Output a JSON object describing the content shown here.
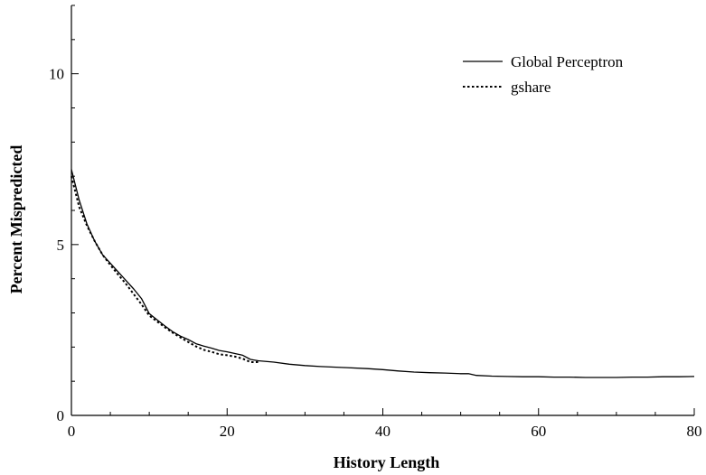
{
  "chart_data": {
    "type": "line",
    "title": "",
    "xlabel": "History Length",
    "ylabel": "Percent Mispredicted",
    "xlim": [
      0,
      80
    ],
    "ylim": [
      0,
      12
    ],
    "xticks": [
      0,
      20,
      40,
      60,
      80
    ],
    "yticks": [
      0,
      5,
      10
    ],
    "grid": false,
    "legend": "top-right",
    "series": [
      {
        "name": "Global Perceptron",
        "style": "solid",
        "color": "#000000",
        "x": [
          0,
          1,
          2,
          3,
          4,
          5,
          6,
          7,
          8,
          9,
          10,
          11,
          12,
          13,
          14,
          15,
          16,
          17,
          18,
          19,
          20,
          21,
          22,
          23,
          24,
          26,
          28,
          30,
          32,
          35,
          38,
          40,
          42,
          44,
          46,
          48,
          50,
          51,
          52,
          54,
          56,
          58,
          60,
          62,
          64,
          66,
          68,
          70,
          72,
          74,
          76,
          78,
          80
        ],
        "y": [
          7.2,
          6.3,
          5.6,
          5.1,
          4.7,
          4.45,
          4.2,
          3.95,
          3.7,
          3.42,
          2.98,
          2.8,
          2.62,
          2.45,
          2.32,
          2.22,
          2.1,
          2.03,
          1.97,
          1.9,
          1.86,
          1.81,
          1.76,
          1.64,
          1.6,
          1.56,
          1.5,
          1.46,
          1.43,
          1.4,
          1.37,
          1.34,
          1.3,
          1.27,
          1.25,
          1.24,
          1.22,
          1.22,
          1.17,
          1.15,
          1.14,
          1.13,
          1.13,
          1.12,
          1.12,
          1.11,
          1.11,
          1.11,
          1.12,
          1.12,
          1.13,
          1.13,
          1.14
        ]
      },
      {
        "name": "gshare",
        "style": "dotted",
        "color": "#000000",
        "x": [
          0,
          1,
          2,
          3,
          4,
          5,
          6,
          7,
          8,
          9,
          10,
          11,
          12,
          13,
          14,
          15,
          16,
          17,
          18,
          19,
          20,
          21,
          22,
          23,
          24
        ],
        "y": [
          7.0,
          6.1,
          5.55,
          5.1,
          4.7,
          4.4,
          4.12,
          3.85,
          3.55,
          3.25,
          2.92,
          2.75,
          2.58,
          2.42,
          2.28,
          2.15,
          2.02,
          1.92,
          1.86,
          1.79,
          1.76,
          1.72,
          1.66,
          1.56,
          1.56
        ]
      }
    ]
  }
}
